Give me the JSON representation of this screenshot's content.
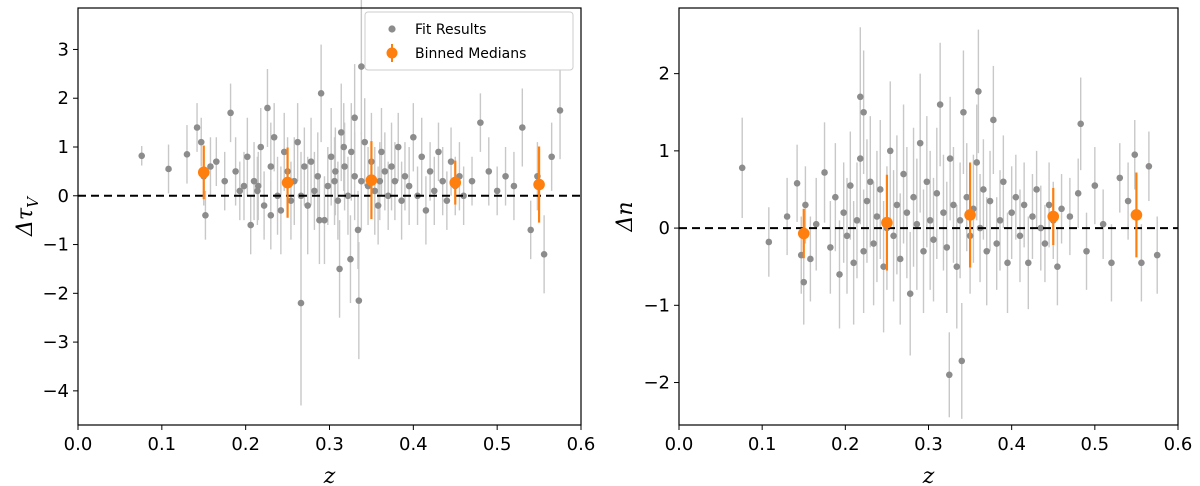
{
  "chart_data": [
    {
      "type": "scatter",
      "xlabel": "z",
      "ylabel": "Δτ_V",
      "xlim": [
        0.0,
        0.6
      ],
      "ylim": [
        -4.7,
        3.85
      ],
      "xticks": [
        "0.0",
        "0.1",
        "0.2",
        "0.3",
        "0.4",
        "0.5",
        "0.6"
      ],
      "yticks": [
        "−4",
        "−3",
        "−2",
        "−1",
        "0",
        "1",
        "2",
        "3"
      ],
      "reference_line": 0,
      "legend": {
        "placement": "top-right",
        "entries": [
          "Fit Results",
          "Binned Medians"
        ]
      },
      "series": [
        {
          "name": "Fit Results",
          "color": "#8c8c8c",
          "errcolor": "#c8c8c8",
          "x": [
            0.076,
            0.108,
            0.13,
            0.142,
            0.147,
            0.15,
            0.152,
            0.158,
            0.165,
            0.175,
            0.182,
            0.188,
            0.193,
            0.198,
            0.202,
            0.206,
            0.21,
            0.214,
            0.218,
            0.222,
            0.226,
            0.23,
            0.234,
            0.238,
            0.242,
            0.246,
            0.25,
            0.254,
            0.258,
            0.262,
            0.266,
            0.27,
            0.274,
            0.278,
            0.282,
            0.286,
            0.29,
            0.294,
            0.298,
            0.302,
            0.306,
            0.31,
            0.314,
            0.318,
            0.322,
            0.326,
            0.33,
            0.334,
            0.338,
            0.342,
            0.346,
            0.35,
            0.354,
            0.358,
            0.362,
            0.366,
            0.37,
            0.374,
            0.378,
            0.382,
            0.386,
            0.39,
            0.395,
            0.4,
            0.405,
            0.41,
            0.415,
            0.42,
            0.425,
            0.43,
            0.435,
            0.44,
            0.445,
            0.45,
            0.455,
            0.46,
            0.47,
            0.48,
            0.49,
            0.5,
            0.51,
            0.52,
            0.53,
            0.54,
            0.548,
            0.556,
            0.565,
            0.575,
            0.266,
            0.288,
            0.312,
            0.325,
            0.335,
            0.338,
            0.36,
            0.215,
            0.23,
            0.33,
            0.317,
            0.307
          ],
          "y": [
            0.82,
            0.55,
            0.85,
            1.4,
            1.1,
            0.4,
            -0.4,
            0.6,
            0.7,
            0.3,
            1.7,
            0.5,
            0.1,
            0.2,
            0.8,
            -0.6,
            0.3,
            0.1,
            1.0,
            -0.2,
            1.8,
            0.6,
            1.2,
            0.0,
            -0.3,
            0.9,
            0.5,
            -0.1,
            0.3,
            1.1,
            0.0,
            0.6,
            -0.2,
            0.7,
            0.1,
            0.4,
            2.1,
            -0.5,
            0.2,
            0.8,
            0.3,
            -0.1,
            1.3,
            0.6,
            0.0,
            0.9,
            0.4,
            -0.7,
            0.3,
            1.1,
            0.2,
            0.7,
            0.1,
            -0.2,
            0.9,
            0.5,
            0.0,
            0.6,
            0.3,
            1.0,
            -0.1,
            0.4,
            0.2,
            1.2,
            0.0,
            0.8,
            -0.3,
            0.5,
            0.1,
            0.9,
            0.3,
            -0.1,
            0.7,
            0.2,
            0.4,
            0.0,
            0.3,
            1.5,
            0.5,
            0.1,
            0.4,
            0.2,
            1.4,
            -0.7,
            0.4,
            -1.2,
            0.8,
            1.75,
            -2.2,
            -0.5,
            -1.5,
            -1.3,
            -2.15,
            2.65,
            0.3,
            0.2,
            -0.4,
            1.6,
            1.0,
            0.5
          ],
          "err": [
            0.2,
            0.5,
            0.6,
            0.5,
            0.5,
            0.6,
            0.5,
            0.6,
            0.5,
            0.6,
            0.6,
            0.7,
            0.6,
            0.7,
            0.8,
            0.6,
            0.8,
            0.7,
            0.8,
            0.7,
            0.8,
            0.9,
            0.7,
            0.8,
            0.9,
            0.8,
            0.7,
            0.8,
            0.9,
            0.8,
            0.9,
            0.8,
            1.0,
            0.9,
            0.8,
            0.9,
            1.0,
            0.9,
            0.8,
            1.0,
            0.9,
            0.8,
            1.0,
            0.9,
            0.8,
            1.0,
            0.9,
            0.8,
            1.0,
            0.9,
            0.8,
            1.0,
            0.9,
            0.8,
            0.9,
            0.8,
            0.7,
            0.9,
            0.8,
            0.7,
            0.8,
            0.7,
            0.8,
            0.7,
            0.6,
            0.8,
            0.7,
            0.6,
            0.7,
            0.6,
            0.7,
            0.6,
            0.7,
            0.6,
            0.7,
            0.6,
            0.5,
            0.6,
            0.7,
            0.5,
            0.6,
            0.7,
            0.8,
            0.6,
            0.7,
            0.8,
            0.7,
            1.0,
            2.1,
            0.9,
            1.0,
            0.9,
            1.2,
            1.4,
            0.8,
            0.7,
            0.7,
            1.1,
            0.9,
            0.9
          ]
        },
        {
          "name": "Binned Medians",
          "color": "#ff7f0e",
          "x": [
            0.15,
            0.25,
            0.35,
            0.45,
            0.55
          ],
          "y": [
            0.48,
            0.27,
            0.32,
            0.27,
            0.23
          ],
          "err": [
            0.55,
            0.72,
            0.8,
            0.45,
            0.78
          ]
        }
      ]
    },
    {
      "type": "scatter",
      "xlabel": "z",
      "ylabel": "Δn",
      "xlim": [
        0.0,
        0.6
      ],
      "ylim": [
        -2.55,
        2.85
      ],
      "xticks": [
        "0.0",
        "0.1",
        "0.2",
        "0.3",
        "0.4",
        "0.5",
        "0.6"
      ],
      "yticks": [
        "−2",
        "−1",
        "0",
        "1",
        "2"
      ],
      "reference_line": 0,
      "series": [
        {
          "name": "Fit Results",
          "color": "#8c8c8c",
          "errcolor": "#c8c8c8",
          "x": [
            0.076,
            0.108,
            0.13,
            0.142,
            0.147,
            0.15,
            0.152,
            0.158,
            0.165,
            0.175,
            0.182,
            0.188,
            0.193,
            0.198,
            0.202,
            0.206,
            0.21,
            0.214,
            0.218,
            0.222,
            0.226,
            0.23,
            0.234,
            0.238,
            0.242,
            0.246,
            0.25,
            0.254,
            0.258,
            0.262,
            0.266,
            0.27,
            0.274,
            0.278,
            0.282,
            0.286,
            0.29,
            0.294,
            0.298,
            0.302,
            0.306,
            0.31,
            0.314,
            0.318,
            0.322,
            0.326,
            0.33,
            0.334,
            0.338,
            0.342,
            0.346,
            0.35,
            0.354,
            0.358,
            0.362,
            0.366,
            0.37,
            0.374,
            0.378,
            0.382,
            0.386,
            0.39,
            0.395,
            0.4,
            0.405,
            0.41,
            0.415,
            0.42,
            0.425,
            0.43,
            0.435,
            0.44,
            0.445,
            0.45,
            0.455,
            0.46,
            0.47,
            0.48,
            0.49,
            0.5,
            0.51,
            0.52,
            0.53,
            0.54,
            0.548,
            0.556,
            0.565,
            0.575,
            0.218,
            0.222,
            0.325,
            0.34,
            0.36,
            0.483
          ],
          "y": [
            0.78,
            -0.18,
            0.15,
            0.58,
            -0.35,
            -0.7,
            0.3,
            -0.4,
            0.05,
            0.72,
            -0.25,
            0.4,
            -0.6,
            0.2,
            -0.1,
            0.55,
            -0.45,
            0.1,
            0.9,
            -0.3,
            0.35,
            0.6,
            -0.2,
            0.15,
            0.5,
            -0.5,
            0.0,
            1.0,
            -0.1,
            0.3,
            -0.4,
            0.7,
            0.2,
            -0.85,
            0.4,
            0.05,
            1.1,
            -0.3,
            0.6,
            0.1,
            -0.15,
            0.45,
            1.6,
            0.2,
            -0.25,
            0.9,
            0.3,
            -0.5,
            0.1,
            1.5,
            0.4,
            -0.1,
            0.25,
            0.85,
            0.0,
            0.5,
            -0.3,
            0.35,
            1.4,
            -0.2,
            0.1,
            0.6,
            -0.45,
            0.2,
            0.4,
            -0.1,
            0.3,
            -0.45,
            0.15,
            0.5,
            0.0,
            -0.2,
            0.3,
            0.1,
            -0.5,
            0.25,
            0.15,
            0.45,
            -0.3,
            0.55,
            0.05,
            -0.45,
            0.65,
            0.35,
            0.95,
            -0.45,
            0.8,
            -0.35,
            1.7,
            1.5,
            -1.9,
            -1.72,
            1.77,
            1.35
          ],
          "err": [
            0.65,
            0.45,
            0.5,
            0.5,
            0.5,
            0.55,
            0.5,
            0.55,
            0.6,
            0.65,
            0.6,
            0.7,
            0.7,
            0.65,
            0.75,
            0.7,
            0.8,
            0.75,
            0.85,
            0.8,
            0.8,
            0.85,
            0.8,
            0.85,
            0.9,
            0.85,
            0.8,
            0.9,
            0.85,
            0.9,
            0.85,
            0.9,
            0.85,
            0.8,
            0.9,
            0.85,
            0.9,
            0.8,
            0.85,
            0.9,
            0.8,
            0.85,
            0.8,
            0.75,
            0.85,
            0.8,
            0.75,
            0.8,
            0.75,
            0.8,
            0.7,
            0.75,
            0.7,
            0.75,
            0.7,
            0.65,
            0.7,
            0.65,
            0.7,
            0.6,
            0.65,
            0.6,
            0.65,
            0.6,
            0.55,
            0.6,
            0.55,
            0.6,
            0.55,
            0.5,
            0.55,
            0.5,
            0.55,
            0.5,
            0.5,
            0.45,
            0.5,
            0.45,
            0.5,
            0.5,
            0.45,
            0.5,
            0.45,
            0.5,
            0.45,
            0.5,
            0.45,
            0.5,
            0.9,
            0.8,
            0.55,
            0.75,
            0.8,
            0.6
          ]
        },
        {
          "name": "Binned Medians",
          "color": "#ff7f0e",
          "x": [
            0.15,
            0.25,
            0.35,
            0.45,
            0.55
          ],
          "y": [
            -0.07,
            0.07,
            0.17,
            0.15,
            0.17
          ],
          "err": [
            0.32,
            0.62,
            0.68,
            0.37,
            0.55
          ]
        }
      ]
    }
  ]
}
